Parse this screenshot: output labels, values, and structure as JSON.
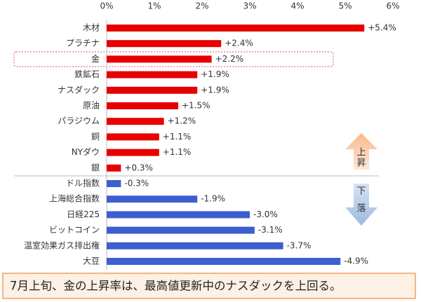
{
  "chart_data": {
    "type": "hbar",
    "categories": [
      "木材",
      "プラチナ",
      "金",
      "鉄鉱石",
      "ナスダック",
      "原油",
      "パラジウム",
      "銅",
      "NYダウ",
      "銀",
      "ドル指数",
      "上海総合指数",
      "日経225",
      "ビットコイン",
      "温室効果ガス排出権",
      "大豆"
    ],
    "values": [
      5.4,
      2.4,
      2.2,
      1.9,
      1.9,
      1.5,
      1.2,
      1.1,
      1.1,
      0.3,
      -0.3,
      -1.9,
      -3.0,
      -3.1,
      -3.7,
      -4.9
    ],
    "value_labels": [
      "+5.4%",
      "+2.4%",
      "+2.2%",
      "+1.9%",
      "+1.9%",
      "+1.5%",
      "+1.2%",
      "+1.1%",
      "+1.1%",
      "+0.3%",
      "-0.3%",
      "-1.9%",
      "-3.0%",
      "-3.1%",
      "-3.7%",
      "-4.9%"
    ],
    "positive_color": "#e60000",
    "negative_color": "#3b5fcf",
    "xlim": [
      0,
      6
    ],
    "xticks": [
      {
        "value": 0,
        "label": "0%"
      },
      {
        "value": 1,
        "label": "1%"
      },
      {
        "value": 2,
        "label": "2%"
      },
      {
        "value": 3,
        "label": "3%"
      },
      {
        "value": 4,
        "label": "4%"
      },
      {
        "value": 5,
        "label": "5%"
      },
      {
        "value": 6,
        "label": "6%"
      }
    ],
    "up_label": [
      "上",
      "昇"
    ],
    "down_label": [
      "下",
      "落"
    ],
    "caption": "7月上旬、金の上昇率は、最高値更新中のナスダックを上回る。"
  }
}
